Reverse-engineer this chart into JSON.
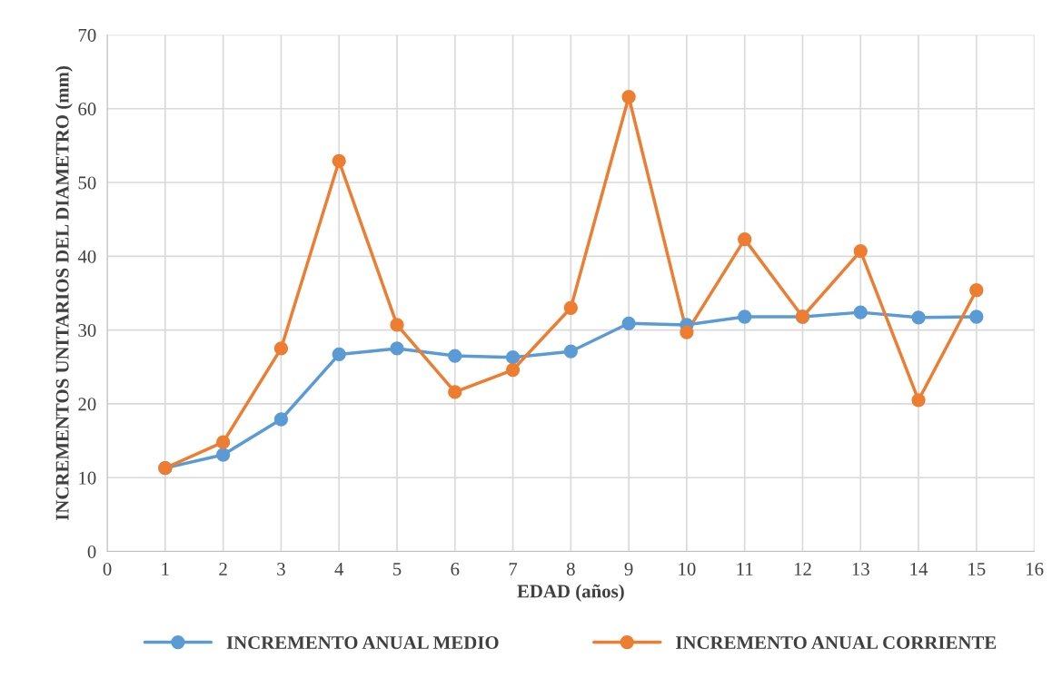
{
  "chart_data": {
    "type": "line",
    "xlabel": "EDAD (años)",
    "ylabel": "INCREMENTOS UNITARIOS DEL DIAMETRO (mm)",
    "x": [
      1,
      2,
      3,
      4,
      5,
      6,
      7,
      8,
      9,
      10,
      11,
      12,
      13,
      14,
      15
    ],
    "series": [
      {
        "name": "INCREMENTO ANUAL MEDIO",
        "color": "#5b9bd5",
        "values": [
          11.3,
          13.1,
          17.9,
          26.7,
          27.5,
          26.5,
          26.3,
          27.1,
          30.9,
          30.7,
          31.8,
          31.8,
          32.4,
          31.7,
          31.8
        ]
      },
      {
        "name": "INCREMENTO ANUAL CORRIENTE",
        "color": "#ed7d31",
        "values": [
          11.3,
          14.8,
          27.5,
          52.9,
          30.7,
          21.6,
          24.6,
          33.0,
          61.6,
          29.7,
          42.3,
          31.8,
          40.7,
          20.5,
          35.4
        ]
      }
    ],
    "xlim": [
      0,
      16
    ],
    "xticks": [
      0,
      1,
      2,
      3,
      4,
      5,
      6,
      7,
      8,
      9,
      10,
      11,
      12,
      13,
      14,
      15,
      16
    ],
    "ylim": [
      0,
      70
    ],
    "yticks": [
      0,
      10,
      20,
      30,
      40,
      50,
      60,
      70
    ],
    "grid": true,
    "legend": "bottom",
    "marker": "circle",
    "line_style": "solid"
  }
}
